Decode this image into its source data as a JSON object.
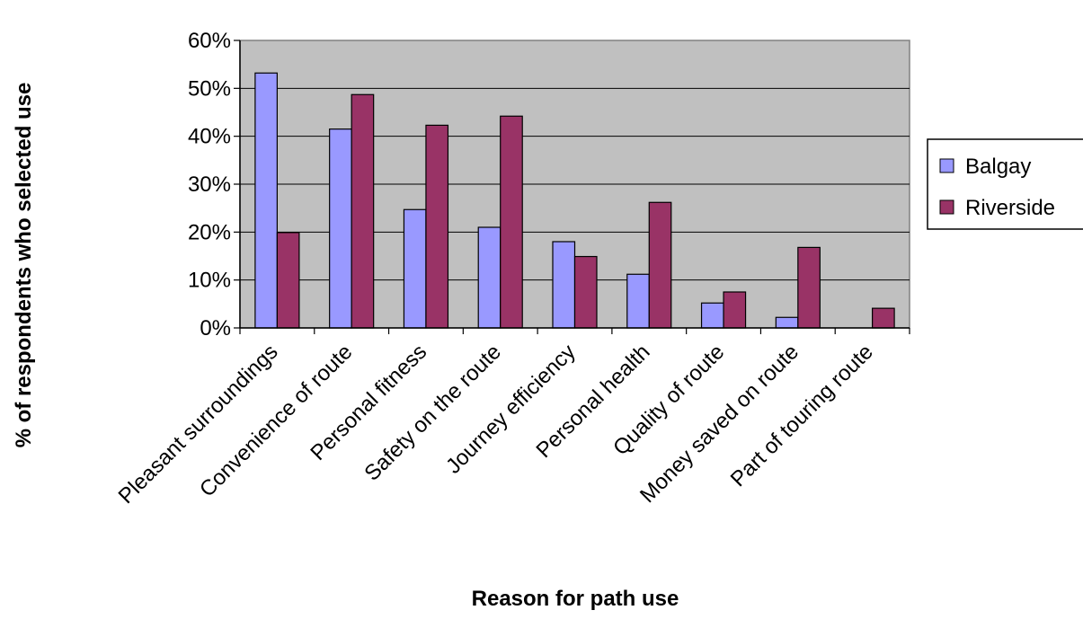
{
  "chart_data": {
    "type": "bar",
    "title": "",
    "xlabel": "Reason for path use",
    "ylabel": "% of respondents who selected use",
    "ylim": [
      0,
      60
    ],
    "yticks": [
      "0%",
      "10%",
      "20%",
      "30%",
      "40%",
      "50%",
      "60%"
    ],
    "categories": [
      "Pleasant surroundings",
      "Convenience of route",
      "Personal fitness",
      "Safety on the route",
      "Journey efficiency",
      "Personal health",
      "Quality of route",
      "Money saved on route",
      "Part of touring route"
    ],
    "series": [
      {
        "name": "Balgay",
        "color": "#9999ff",
        "values": [
          53.2,
          41.5,
          24.7,
          21.0,
          18.0,
          11.2,
          5.2,
          2.2,
          0
        ]
      },
      {
        "name": "Riverside",
        "color": "#993366",
        "values": [
          19.9,
          48.7,
          42.3,
          44.2,
          14.9,
          26.2,
          7.5,
          16.8,
          4.1
        ]
      }
    ],
    "grid": true,
    "plot_background": "#c0c0c0",
    "legend_position": "right"
  }
}
